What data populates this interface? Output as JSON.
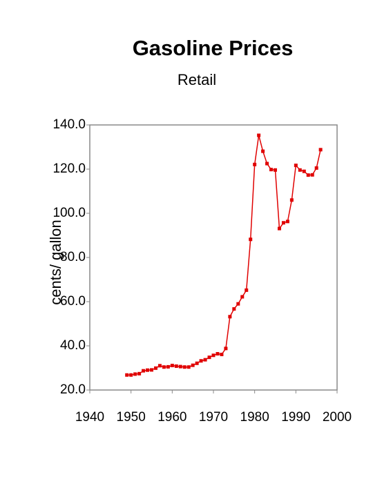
{
  "chart_data": {
    "type": "line",
    "title": "Gasoline Prices",
    "subtitle": "Retail",
    "y_label": "cents/ gallon",
    "x": [
      1949,
      1950,
      1951,
      1952,
      1953,
      1954,
      1955,
      1956,
      1957,
      1958,
      1959,
      1960,
      1961,
      1962,
      1963,
      1964,
      1965,
      1966,
      1967,
      1968,
      1969,
      1970,
      1971,
      1972,
      1973,
      1974,
      1975,
      1976,
      1977,
      1978,
      1979,
      1980,
      1981,
      1982,
      1983,
      1984,
      1985,
      1986,
      1987,
      1988,
      1989,
      1990,
      1991,
      1992,
      1993,
      1994,
      1995,
      1996
    ],
    "values": [
      26.8,
      26.8,
      27.2,
      27.4,
      28.7,
      29.0,
      29.1,
      29.9,
      31.0,
      30.4,
      30.5,
      31.1,
      30.8,
      30.6,
      30.4,
      30.4,
      31.2,
      32.1,
      33.2,
      33.7,
      34.8,
      35.7,
      36.4,
      36.1,
      38.8,
      53.2,
      56.7,
      59.0,
      62.2,
      65.2,
      88.2,
      122.1,
      135.3,
      128.1,
      122.5,
      119.8,
      119.6,
      93.1,
      95.7,
      96.3,
      106.0,
      121.7,
      119.6,
      119.0,
      117.3,
      117.4,
      120.5,
      128.8
    ],
    "color": "#e00000",
    "xlim": [
      1940,
      2000
    ],
    "xticks": [
      1940,
      1950,
      1960,
      1970,
      1980,
      1990,
      2000
    ],
    "ylim": [
      20,
      140
    ],
    "yticks": [
      {
        "value": 20,
        "label": "20.0"
      },
      {
        "value": 40,
        "label": "40.0"
      },
      {
        "value": 60,
        "label": "60.0"
      },
      {
        "value": 80,
        "label": "80.0"
      },
      {
        "value": 100,
        "label": "100.0"
      },
      {
        "value": 120,
        "label": "120.0"
      },
      {
        "value": 140,
        "label": "140.0"
      }
    ]
  }
}
